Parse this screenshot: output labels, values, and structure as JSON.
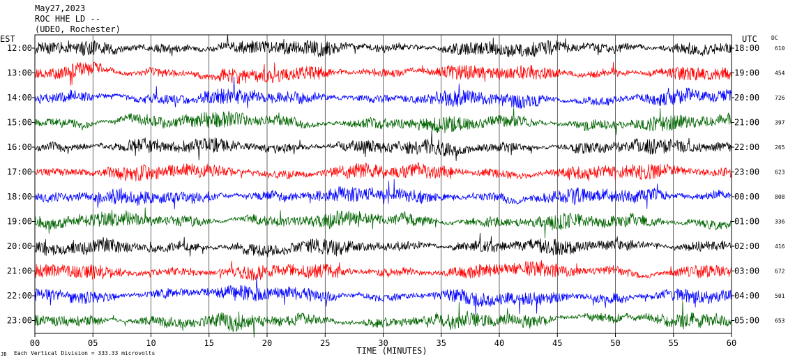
{
  "header": {
    "date": "May27,2023",
    "station": "ROC HHE LD --",
    "location": "(UDEO, Rochester)"
  },
  "chart_data": {
    "type": "line",
    "title": "",
    "xlabel": "TIME (MINUTES)",
    "ylabel_left": "EST",
    "ylabel_right": "UTC",
    "dc_label": "DC",
    "x_ticks": [
      "00",
      "05",
      "10",
      "15",
      "20",
      "25",
      "30",
      "35",
      "40",
      "45",
      "50",
      "55",
      "60"
    ],
    "xlim": [
      0,
      60
    ],
    "footer_note": "Each Vertical Division = 333.33 microvolts",
    "footer_mark": "JB",
    "colors": [
      "#000000",
      "#ff0000",
      "#0000ff",
      "#006400"
    ],
    "rows": [
      {
        "est": "12:00",
        "utc": "18:00",
        "dc": "610",
        "color": "#000000"
      },
      {
        "est": "13:00",
        "utc": "19:00",
        "dc": "454",
        "color": "#ff0000"
      },
      {
        "est": "14:00",
        "utc": "20:00",
        "dc": "726",
        "color": "#0000ff"
      },
      {
        "est": "15:00",
        "utc": "21:00",
        "dc": "397",
        "color": "#006400"
      },
      {
        "est": "16:00",
        "utc": "22:00",
        "dc": "265",
        "color": "#000000"
      },
      {
        "est": "17:00",
        "utc": "23:00",
        "dc": "623",
        "color": "#ff0000"
      },
      {
        "est": "18:00",
        "utc": "00:00",
        "dc": "808",
        "color": "#0000ff"
      },
      {
        "est": "19:00",
        "utc": "01:00",
        "dc": "336",
        "color": "#006400"
      },
      {
        "est": "20:00",
        "utc": "02:00",
        "dc": "416",
        "color": "#000000"
      },
      {
        "est": "21:00",
        "utc": "03:00",
        "dc": "672",
        "color": "#ff0000"
      },
      {
        "est": "22:00",
        "utc": "04:00",
        "dc": "501",
        "color": "#0000ff"
      },
      {
        "est": "23:00",
        "utc": "05:00",
        "dc": "653",
        "color": "#006400"
      }
    ]
  }
}
